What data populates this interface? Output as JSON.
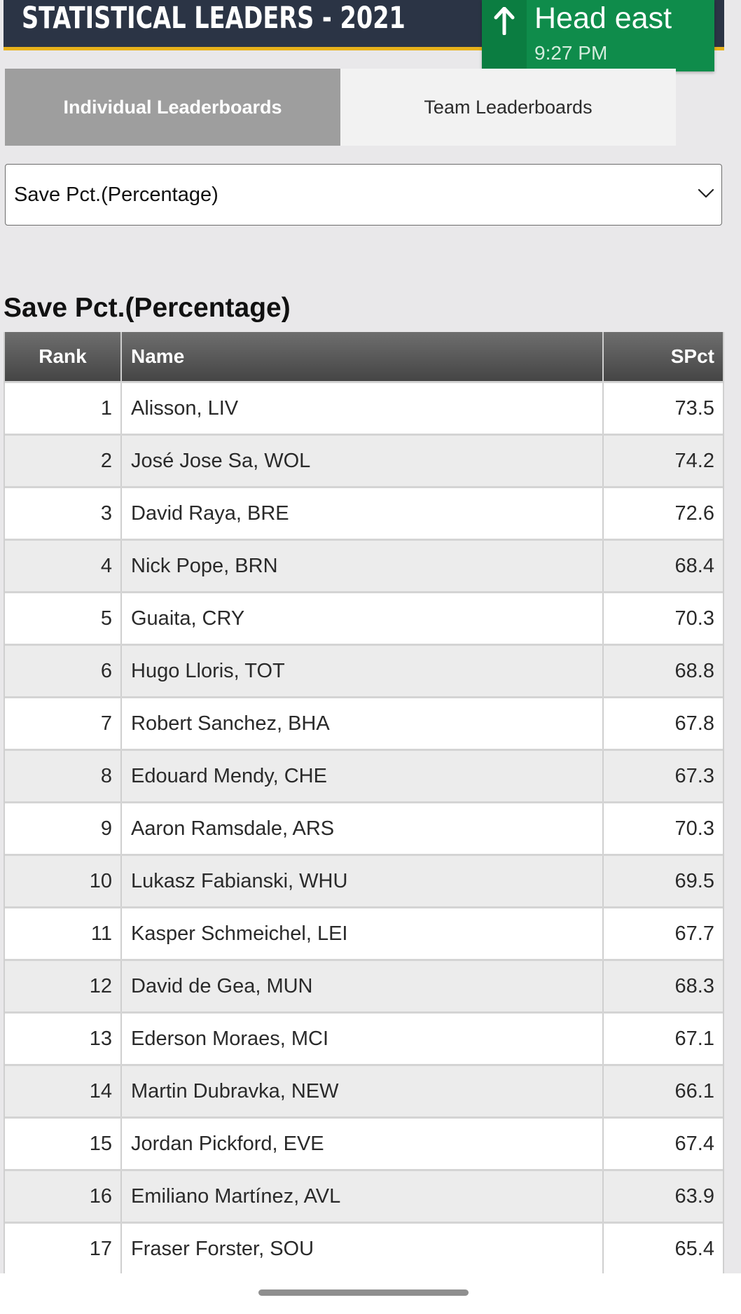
{
  "header": {
    "title": "STATISTICAL LEADERS - 2021"
  },
  "navigation": {
    "direction": "Head east",
    "time": "9:27 PM",
    "icon": "arrow-up-icon"
  },
  "tabs": [
    {
      "label": "Individual Leaderboards",
      "active": true
    },
    {
      "label": "Team Leaderboards",
      "active": false
    }
  ],
  "stat_select": {
    "value": "Save Pct.(Percentage)",
    "icon": "chevron-down-icon"
  },
  "stat_heading": "Save Pct.(Percentage)",
  "table": {
    "columns": [
      "Rank",
      "Name",
      "SPct"
    ],
    "rows": [
      {
        "rank": "1",
        "name": "Alisson, LIV",
        "value": "73.5"
      },
      {
        "rank": "2",
        "name": "José Jose Sa, WOL",
        "value": "74.2"
      },
      {
        "rank": "3",
        "name": "David Raya, BRE",
        "value": "72.6"
      },
      {
        "rank": "4",
        "name": "Nick Pope, BRN",
        "value": "68.4"
      },
      {
        "rank": "5",
        "name": "Guaita, CRY",
        "value": "70.3"
      },
      {
        "rank": "6",
        "name": "Hugo Lloris, TOT",
        "value": "68.8"
      },
      {
        "rank": "7",
        "name": "Robert Sanchez, BHA",
        "value": "67.8"
      },
      {
        "rank": "8",
        "name": "Edouard Mendy, CHE",
        "value": "67.3"
      },
      {
        "rank": "9",
        "name": "Aaron Ramsdale, ARS",
        "value": "70.3"
      },
      {
        "rank": "10",
        "name": "Lukasz Fabianski, WHU",
        "value": "69.5"
      },
      {
        "rank": "11",
        "name": "Kasper Schmeichel, LEI",
        "value": "67.7"
      },
      {
        "rank": "12",
        "name": "David de Gea, MUN",
        "value": "68.3"
      },
      {
        "rank": "13",
        "name": "Ederson Moraes, MCI",
        "value": "67.1"
      },
      {
        "rank": "14",
        "name": "Martin Dubravka, NEW",
        "value": "66.1"
      },
      {
        "rank": "15",
        "name": "Jordan Pickford, EVE",
        "value": "67.4"
      },
      {
        "rank": "16",
        "name": "Emiliano Martínez, AVL",
        "value": "63.9"
      },
      {
        "rank": "17",
        "name": "Fraser Forster, SOU",
        "value": "65.4"
      }
    ]
  },
  "colors": {
    "header_bg": "#2b3445",
    "header_accent": "#e8b21b",
    "nav_green": "#0f8c4b",
    "tab_active_bg": "#9e9e9e"
  }
}
